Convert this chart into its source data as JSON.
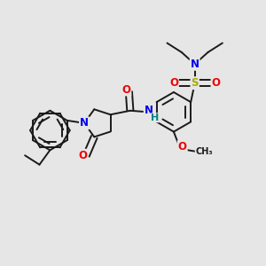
{
  "bg_color": "#e6e6e6",
  "bond_color": "#1a1a1a",
  "bond_width": 1.4,
  "atom_colors": {
    "N": "#0000ee",
    "O": "#ee0000",
    "S": "#aaaa00",
    "C": "#1a1a1a",
    "H": "#008080"
  },
  "font_size_atom": 8.5,
  "font_size_small": 7.0
}
